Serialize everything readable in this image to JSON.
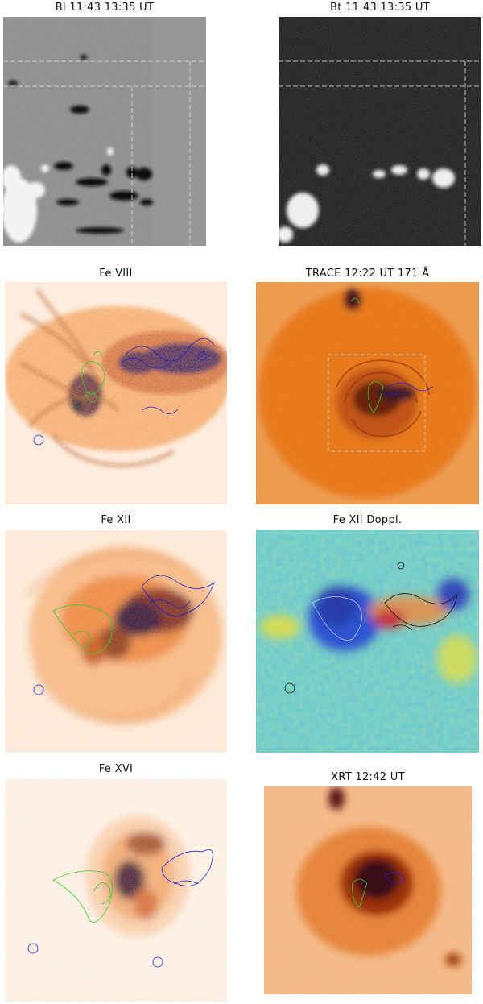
{
  "panels": [
    {
      "id": "bl",
      "title": "Bl 11:43 13:35 UT"
    },
    {
      "id": "bt",
      "title": "Bt 11:43 13:35 UT"
    },
    {
      "id": "fe8",
      "title": "Fe VIII"
    },
    {
      "id": "trace",
      "title": "TRACE 12:22 UT 171 Å"
    },
    {
      "id": "fe12",
      "title": "Fe XII"
    },
    {
      "id": "fe12d",
      "title": "Fe XII Doppl."
    },
    {
      "id": "fe16",
      "title": "Fe XVI"
    },
    {
      "id": "xrt",
      "title": "XRT 12:42 UT"
    }
  ],
  "colors": {
    "magnetogram_background": "#8a8a8a",
    "intensity_heat_base": "#f07a1e",
    "intensity_heat_dark": "#20082e",
    "doppler_background": "#5ec9d0",
    "positive_polarity_contour": "#33cc33",
    "negative_polarity_contour": "#2222cc"
  }
}
